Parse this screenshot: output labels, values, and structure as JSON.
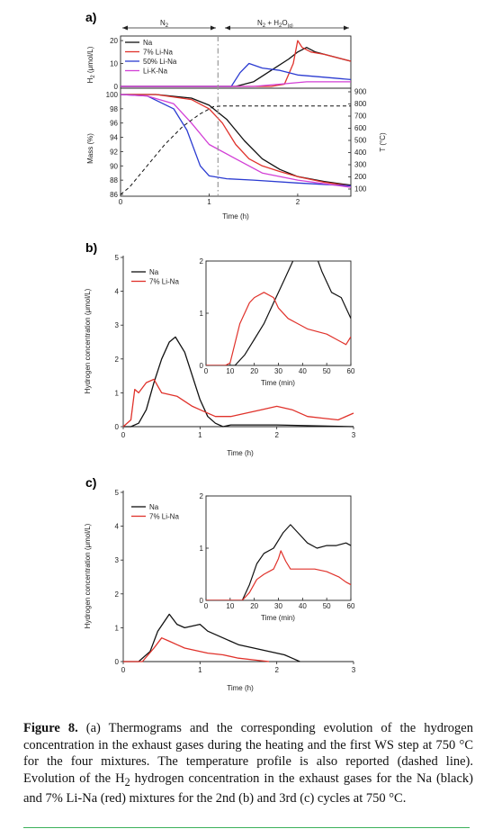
{
  "panel_a": {
    "label": "a)",
    "seg_n2": "N",
    "seg_n2_sub": "2",
    "seg_mix_pre": "N",
    "seg_mix_sub1": "2",
    "seg_mix_mid": " + H",
    "seg_mix_sub2": "2",
    "seg_mix_o": "O",
    "seg_mix_sub3": "(g)",
    "top_ylabel": "H",
    "top_ylabel_sub": "2",
    "top_ylabel_rest": " (μmol/L)",
    "bottom_ylabel": "Mass (%)",
    "right_ylabel": "T (°C)",
    "xlabel": "Time (h)"
  },
  "panel_b": {
    "label": "b)",
    "ylabel": "Hydrogen concentration (μmol/L)",
    "xlabel": "Time (h)",
    "inset_xlabel": "Time (min)"
  },
  "panel_c": {
    "label": "c)",
    "ylabel": "Hydrogen concentration (μmol/L)",
    "xlabel": "Time (h)",
    "inset_xlabel": "Time (min)"
  },
  "colors": {
    "Na": "#111111",
    "7% Li-Na": "#e0322b",
    "50% Li-Na": "#2b3bd1",
    "Li-K-Na": "#d23fd6",
    "temperature": "#111111"
  },
  "caption": {
    "fig": "Figure 8.",
    "text1": " (a) Thermograms and the corresponding evolution of the hydrogen concentration in the exhaust gases during the heating and the first WS step at 750 °C for the four mixtures. The temperature profile is also reported (dashed line). Evolution of the H",
    "sub": "2",
    "text2": " hydrogen concentration in the exhaust gases for the Na (black) and 7% Li-Na (red) mixtures for the 2nd (b) and 3rd (c) cycles at 750 °C."
  },
  "chart_data": [
    {
      "id": "a_h2",
      "type": "line",
      "xlim": [
        0,
        2.6
      ],
      "ylim": [
        0,
        22
      ],
      "xticks": [],
      "yticks": [
        0,
        10,
        20
      ],
      "legend": [
        "Na",
        "7% Li-Na",
        "50% Li-Na",
        "Li-K-Na"
      ],
      "series": [
        {
          "name": "Na",
          "x": [
            0,
            1.3,
            1.5,
            1.7,
            1.9,
            2.0,
            2.1,
            2.2,
            2.4,
            2.6
          ],
          "y": [
            0,
            0,
            2,
            7,
            12,
            15,
            17,
            15,
            13,
            11
          ]
        },
        {
          "name": "7% Li-Na",
          "x": [
            0,
            1.7,
            1.85,
            1.95,
            2.0,
            2.05,
            2.15,
            2.3,
            2.5,
            2.6
          ],
          "y": [
            0,
            0,
            1,
            10,
            20,
            17,
            15,
            14,
            12,
            11
          ]
        },
        {
          "name": "50% Li-Na",
          "x": [
            0,
            1.25,
            1.35,
            1.45,
            1.6,
            1.8,
            2.0,
            2.3,
            2.6
          ],
          "y": [
            0,
            0,
            6,
            10,
            8,
            7,
            5,
            4,
            3
          ]
        },
        {
          "name": "Li-K-Na",
          "x": [
            0,
            1.5,
            1.8,
            2.1,
            2.6
          ],
          "y": [
            0,
            0,
            1,
            2,
            2
          ]
        }
      ]
    },
    {
      "id": "a_mass",
      "type": "line",
      "xlim": [
        0,
        2.6
      ],
      "ylim": [
        86,
        100
      ],
      "xticks": [
        0,
        1,
        2
      ],
      "yticks": [
        86,
        88,
        90,
        92,
        94,
        96,
        98,
        100
      ],
      "y2lim": [
        100,
        900
      ],
      "y2ticks": [
        100,
        200,
        300,
        400,
        500,
        600,
        700,
        800,
        900
      ],
      "annotations": [
        "N2",
        "N2 + H2O(g)"
      ],
      "series": [
        {
          "name": "Na",
          "x": [
            0,
            0.4,
            0.8,
            1.0,
            1.2,
            1.4,
            1.6,
            1.8,
            2.0,
            2.3,
            2.6
          ],
          "y": [
            100,
            100,
            99.5,
            98.5,
            96.5,
            93.5,
            91,
            89.5,
            88.5,
            87.8,
            87.3
          ]
        },
        {
          "name": "7% Li-Na",
          "x": [
            0,
            0.4,
            0.8,
            1.0,
            1.15,
            1.3,
            1.45,
            1.6,
            1.8,
            2.0,
            2.3,
            2.6
          ],
          "y": [
            100,
            100,
            99.3,
            98,
            96,
            93,
            91,
            90,
            89.2,
            88.5,
            87.7,
            87.2
          ]
        },
        {
          "name": "50% Li-Na",
          "x": [
            0,
            0.3,
            0.6,
            0.75,
            0.9,
            1.0,
            1.2,
            1.5,
            2.0,
            2.6
          ],
          "y": [
            100,
            99.8,
            98,
            95,
            90,
            88.6,
            88.2,
            88,
            87.6,
            87.2
          ]
        },
        {
          "name": "Li-K-Na",
          "x": [
            0,
            0.3,
            0.6,
            0.8,
            1.0,
            1.3,
            1.6,
            2.0,
            2.6
          ],
          "y": [
            100,
            99.8,
            98.7,
            96,
            93,
            91,
            89,
            88,
            87
          ]
        },
        {
          "name": "temperature",
          "x": [
            0,
            0.1,
            0.3,
            0.5,
            0.7,
            0.9,
            1.05,
            1.15,
            2.6
          ],
          "y": [
            86,
            87,
            90,
            93,
            95.5,
            97.3,
            98.3,
            98.4,
            98.4
          ]
        }
      ]
    },
    {
      "id": "b_main",
      "type": "line",
      "xlim": [
        0,
        3
      ],
      "ylim": [
        0,
        5
      ],
      "xticks": [
        0,
        1,
        2,
        3
      ],
      "yticks": [
        0,
        1,
        2,
        3,
        4,
        5
      ],
      "legend": [
        "Na",
        "7% Li-Na"
      ],
      "series": [
        {
          "name": "Na",
          "x": [
            0,
            0.1,
            0.2,
            0.3,
            0.4,
            0.5,
            0.6,
            0.68,
            0.8,
            0.9,
            1.0,
            1.1,
            1.2,
            1.3,
            1.4,
            2.0,
            3.0
          ],
          "y": [
            0,
            0,
            0.1,
            0.5,
            1.3,
            2.0,
            2.5,
            2.65,
            2.2,
            1.5,
            0.8,
            0.3,
            0.1,
            0,
            0.05,
            0.05,
            0.0
          ]
        },
        {
          "name": "7% Li-Na",
          "x": [
            0,
            0.1,
            0.15,
            0.2,
            0.3,
            0.4,
            0.5,
            0.7,
            0.9,
            1.0,
            1.2,
            1.4,
            1.6,
            1.8,
            2.0,
            2.2,
            2.4,
            2.6,
            2.8,
            3.0
          ],
          "y": [
            0,
            0.2,
            1.1,
            1.0,
            1.3,
            1.4,
            1.0,
            0.9,
            0.6,
            0.5,
            0.3,
            0.3,
            0.4,
            0.5,
            0.6,
            0.5,
            0.3,
            0.25,
            0.2,
            0.4
          ]
        }
      ]
    },
    {
      "id": "b_inset",
      "type": "line",
      "xlim": [
        0,
        60
      ],
      "ylim": [
        0,
        2
      ],
      "xticks": [
        0,
        10,
        20,
        30,
        40,
        50,
        60
      ],
      "yticks": [
        0,
        1,
        2
      ],
      "series": [
        {
          "name": "Na",
          "x": [
            0,
            5,
            8,
            12,
            16,
            20,
            24,
            28,
            32,
            36,
            40,
            44,
            48,
            52,
            56,
            60
          ],
          "y": [
            0,
            0,
            0,
            0,
            0.2,
            0.5,
            0.8,
            1.2,
            1.6,
            2.0,
            2.6,
            2.3,
            1.8,
            1.4,
            1.3,
            0.9
          ]
        },
        {
          "name": "7% Li-Na",
          "x": [
            0,
            5,
            8,
            10,
            14,
            18,
            20,
            24,
            28,
            30,
            34,
            38,
            42,
            46,
            50,
            54,
            58,
            60
          ],
          "y": [
            0,
            0,
            0,
            0.05,
            0.8,
            1.2,
            1.3,
            1.4,
            1.3,
            1.1,
            0.9,
            0.8,
            0.7,
            0.65,
            0.6,
            0.5,
            0.4,
            0.55
          ]
        }
      ]
    },
    {
      "id": "c_main",
      "type": "line",
      "xlim": [
        0,
        3
      ],
      "ylim": [
        0,
        5
      ],
      "xticks": [
        0,
        1,
        2,
        3
      ],
      "yticks": [
        0,
        1,
        2,
        3,
        4,
        5
      ],
      "legend": [
        "Na",
        "7% Li-Na"
      ],
      "series": [
        {
          "name": "Na",
          "x": [
            0,
            0.2,
            0.35,
            0.45,
            0.6,
            0.7,
            0.8,
            1.0,
            1.1,
            1.3,
            1.5,
            1.7,
            1.9,
            2.1,
            2.2,
            2.3
          ],
          "y": [
            0,
            0,
            0.3,
            0.9,
            1.4,
            1.1,
            1.0,
            1.1,
            0.9,
            0.7,
            0.5,
            0.4,
            0.3,
            0.2,
            0.1,
            0
          ]
        },
        {
          "name": "7% Li-Na",
          "x": [
            0,
            0.25,
            0.4,
            0.5,
            0.6,
            0.7,
            0.8,
            1.0,
            1.1,
            1.3,
            1.5,
            1.7,
            1.9
          ],
          "y": [
            0,
            0,
            0.4,
            0.7,
            0.6,
            0.5,
            0.4,
            0.3,
            0.25,
            0.2,
            0.1,
            0.05,
            0
          ]
        }
      ]
    },
    {
      "id": "c_inset",
      "type": "line",
      "xlim": [
        0,
        60
      ],
      "ylim": [
        0,
        2
      ],
      "xticks": [
        0,
        10,
        20,
        30,
        40,
        50,
        60
      ],
      "yticks": [
        0,
        1,
        2
      ],
      "series": [
        {
          "name": "Na",
          "x": [
            0,
            15,
            18,
            21,
            24,
            28,
            32,
            35,
            38,
            42,
            46,
            50,
            54,
            58,
            60
          ],
          "y": [
            0,
            0,
            0.3,
            0.7,
            0.9,
            1.0,
            1.3,
            1.45,
            1.3,
            1.1,
            1.0,
            1.05,
            1.05,
            1.1,
            1.05
          ]
        },
        {
          "name": "7% Li-Na",
          "x": [
            0,
            15,
            18,
            21,
            24,
            28,
            30,
            31,
            33,
            35,
            40,
            45,
            50,
            55,
            58,
            60
          ],
          "y": [
            0,
            0,
            0.15,
            0.4,
            0.5,
            0.6,
            0.8,
            0.95,
            0.75,
            0.6,
            0.6,
            0.6,
            0.55,
            0.45,
            0.35,
            0.3
          ]
        }
      ]
    }
  ]
}
